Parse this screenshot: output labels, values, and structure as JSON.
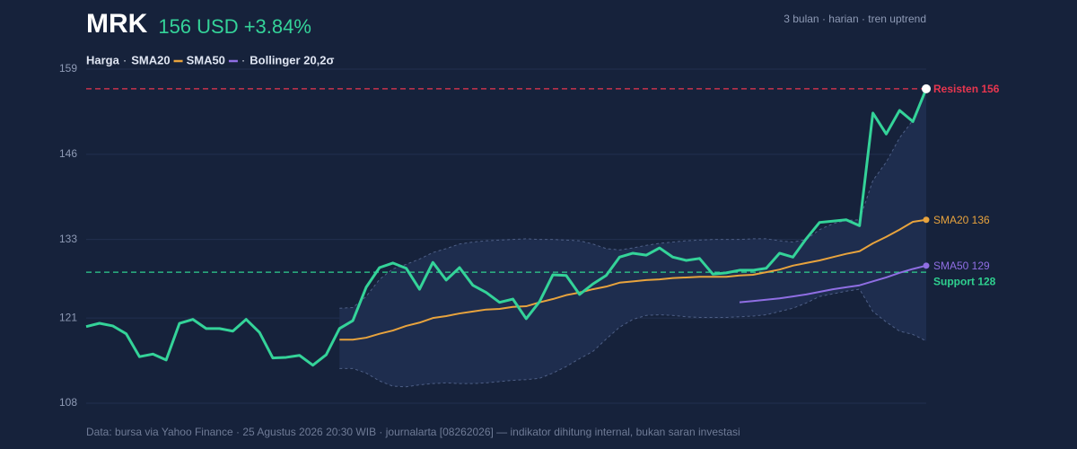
{
  "chart_data": {
    "type": "line",
    "title": "MRK",
    "price_label": "156 USD +3.84%",
    "subtitle": "3 bulan · harian · tren uptrend",
    "source": "Data: bursa via Yahoo Finance · 25 Agustus 2026 20:30 WIB · journalarta [08262026] — indikator dihitung internal, bukan saran investasi",
    "ylim": [
      108,
      159
    ],
    "yticks": [
      108,
      121,
      133,
      146,
      159
    ],
    "grid": true,
    "series": [
      {
        "name": "Harga",
        "color": "#34d399",
        "values": [
          119.7,
          120.2,
          119.8,
          118.6,
          115.1,
          115.5,
          114.6,
          120.2,
          120.8,
          119.4,
          119.4,
          119.0,
          120.8,
          118.8,
          114.9,
          115.0,
          115.3,
          113.8,
          115.4,
          119.4,
          120.6,
          125.7,
          128.7,
          129.4,
          128.6,
          125.4,
          129.5,
          126.8,
          128.7,
          126.0,
          124.9,
          123.4,
          123.9,
          120.9,
          123.5,
          127.6,
          127.5,
          124.6,
          126.2,
          127.5,
          130.3,
          130.9,
          130.6,
          131.7,
          130.3,
          129.8,
          130.1,
          127.7,
          127.9,
          128.3,
          128.3,
          128.6,
          130.9,
          130.3,
          133.1,
          135.6,
          135.8,
          136.0,
          135.1,
          152.3,
          149.1,
          152.7,
          151.0,
          156
        ]
      },
      {
        "name": "SMA20",
        "color": "#e8a33d",
        "end_label": "SMA20 136",
        "values": [
          null,
          null,
          null,
          null,
          null,
          null,
          null,
          null,
          null,
          null,
          null,
          null,
          null,
          null,
          null,
          null,
          null,
          null,
          null,
          117.7,
          117.7,
          118.0,
          118.6,
          119.1,
          119.8,
          120.3,
          121.0,
          121.3,
          121.7,
          122.0,
          122.3,
          122.4,
          122.7,
          122.8,
          123.4,
          123.9,
          124.5,
          124.9,
          125.4,
          125.8,
          126.4,
          126.6,
          126.8,
          126.9,
          127.1,
          127.2,
          127.3,
          127.3,
          127.3,
          127.5,
          127.6,
          128.0,
          128.4,
          129.0,
          129.4,
          129.8,
          130.3,
          130.8,
          131.2,
          132.4,
          133.4,
          134.5,
          135.7,
          136
        ]
      },
      {
        "name": "SMA50",
        "color": "#8f6ee3",
        "end_label": "SMA50 129",
        "values": [
          null,
          null,
          null,
          null,
          null,
          null,
          null,
          null,
          null,
          null,
          null,
          null,
          null,
          null,
          null,
          null,
          null,
          null,
          null,
          null,
          null,
          null,
          null,
          null,
          null,
          null,
          null,
          null,
          null,
          null,
          null,
          null,
          null,
          null,
          null,
          null,
          null,
          null,
          null,
          null,
          null,
          null,
          null,
          null,
          null,
          null,
          null,
          null,
          null,
          123.4,
          123.6,
          123.8,
          124.0,
          124.3,
          124.6,
          125.0,
          125.4,
          125.7,
          126.0,
          126.6,
          127.2,
          127.9,
          128.5,
          129.0
        ]
      }
    ],
    "bollinger": {
      "name": "Bollinger 20,2σ",
      "color": "#4e5f86",
      "fill": "#1e2d4e",
      "upper": [
        null,
        null,
        null,
        null,
        null,
        null,
        null,
        null,
        null,
        null,
        null,
        null,
        null,
        null,
        null,
        null,
        null,
        null,
        null,
        122.5,
        122.6,
        124.3,
        126.9,
        128.5,
        129.2,
        130.0,
        131.0,
        131.6,
        132.3,
        132.6,
        132.8,
        132.9,
        133.0,
        133.1,
        133.0,
        133.0,
        132.9,
        132.8,
        132.3,
        131.6,
        131.4,
        131.7,
        132.1,
        132.4,
        132.6,
        132.8,
        132.9,
        133.0,
        133.0,
        133.0,
        133.1,
        133.1,
        132.8,
        132.6,
        133.0,
        134.5,
        135.4,
        135.9,
        136.0,
        142.0,
        144.8,
        148.5,
        151.2,
        156.4
      ],
      "lower": [
        null,
        null,
        null,
        null,
        null,
        null,
        null,
        null,
        null,
        null,
        null,
        null,
        null,
        null,
        null,
        null,
        null,
        null,
        null,
        113.3,
        113.3,
        112.6,
        111.4,
        110.6,
        110.5,
        110.8,
        111.0,
        111.1,
        111.0,
        111.0,
        111.1,
        111.3,
        111.5,
        111.6,
        111.8,
        112.6,
        113.6,
        114.8,
        115.9,
        117.8,
        119.6,
        120.8,
        121.4,
        121.5,
        121.4,
        121.2,
        121.1,
        121.1,
        121.1,
        121.2,
        121.3,
        121.5,
        122.0,
        122.5,
        123.3,
        124.3,
        124.7,
        125.1,
        125.4,
        122.0,
        120.4,
        119.0,
        118.5,
        117.5
      ]
    },
    "levels": [
      {
        "label": "Resisten 156",
        "value": 156,
        "color": "#e8364f"
      },
      {
        "label": "Support 128",
        "value": 128,
        "color": "#2fd08f"
      }
    ]
  }
}
